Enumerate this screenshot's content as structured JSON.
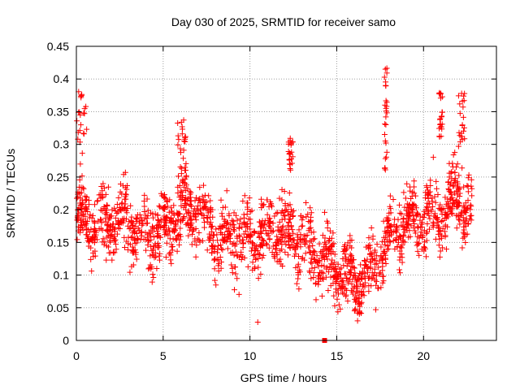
{
  "chart_data": {
    "type": "scatter",
    "title": "Day 030 of 2025, SRMTID for receiver samo",
    "xlabel": "GPS time / hours",
    "ylabel": "SRMTID / TECUs",
    "xlim": [
      0,
      24.2
    ],
    "ylim": [
      0,
      0.45
    ],
    "xticks": [
      0,
      5,
      10,
      15,
      20
    ],
    "xtick_labels": [
      "0",
      "5",
      "10",
      "15",
      "20"
    ],
    "yticks": [
      0,
      0.05,
      0.1,
      0.15,
      0.2,
      0.25,
      0.3,
      0.35,
      0.4,
      0.45
    ],
    "ytick_labels": [
      "0",
      "0.05",
      "0.1",
      "0.15",
      "0.2",
      "0.25",
      "0.3",
      "0.35",
      "0.4",
      "0.45"
    ],
    "grid": true,
    "marker": "plus",
    "color": "#ff0000",
    "trend_hours": [
      0,
      1,
      2,
      3,
      4,
      5,
      6,
      7,
      8,
      9,
      10,
      11,
      12,
      13,
      14,
      15,
      16,
      17,
      18,
      19,
      20,
      21,
      22,
      22.8
    ],
    "trend_values": [
      0.2,
      0.17,
      0.18,
      0.18,
      0.16,
      0.17,
      0.2,
      0.2,
      0.15,
      0.16,
      0.16,
      0.16,
      0.17,
      0.15,
      0.13,
      0.11,
      0.09,
      0.1,
      0.16,
      0.18,
      0.19,
      0.19,
      0.22,
      0.19
    ],
    "spread": 0.05,
    "point_count": 1900,
    "bursts": [
      {
        "x_range": [
          0.0,
          0.6
        ],
        "y_range": [
          0.28,
          0.39
        ]
      },
      {
        "x_range": [
          5.8,
          6.3
        ],
        "y_range": [
          0.25,
          0.34
        ]
      },
      {
        "x_range": [
          12.2,
          12.5
        ],
        "y_range": [
          0.26,
          0.31
        ]
      },
      {
        "x_range": [
          17.75,
          17.9
        ],
        "y_range": [
          0.26,
          0.42
        ]
      },
      {
        "x_range": [
          20.9,
          21.1
        ],
        "y_range": [
          0.31,
          0.38
        ]
      },
      {
        "x_range": [
          22.0,
          22.4
        ],
        "y_range": [
          0.28,
          0.38
        ]
      }
    ],
    "extra_points": [
      {
        "x": 14.3,
        "y": 0.0,
        "marker": "square"
      },
      {
        "x": 10.45,
        "y": 0.028
      },
      {
        "x": 16.2,
        "y": 0.03
      },
      {
        "x": 17.8,
        "y": 0.415
      },
      {
        "x": 17.82,
        "y": 0.39
      },
      {
        "x": 17.78,
        "y": 0.36
      },
      {
        "x": 17.83,
        "y": 0.33
      },
      {
        "x": 17.8,
        "y": 0.305
      }
    ]
  }
}
